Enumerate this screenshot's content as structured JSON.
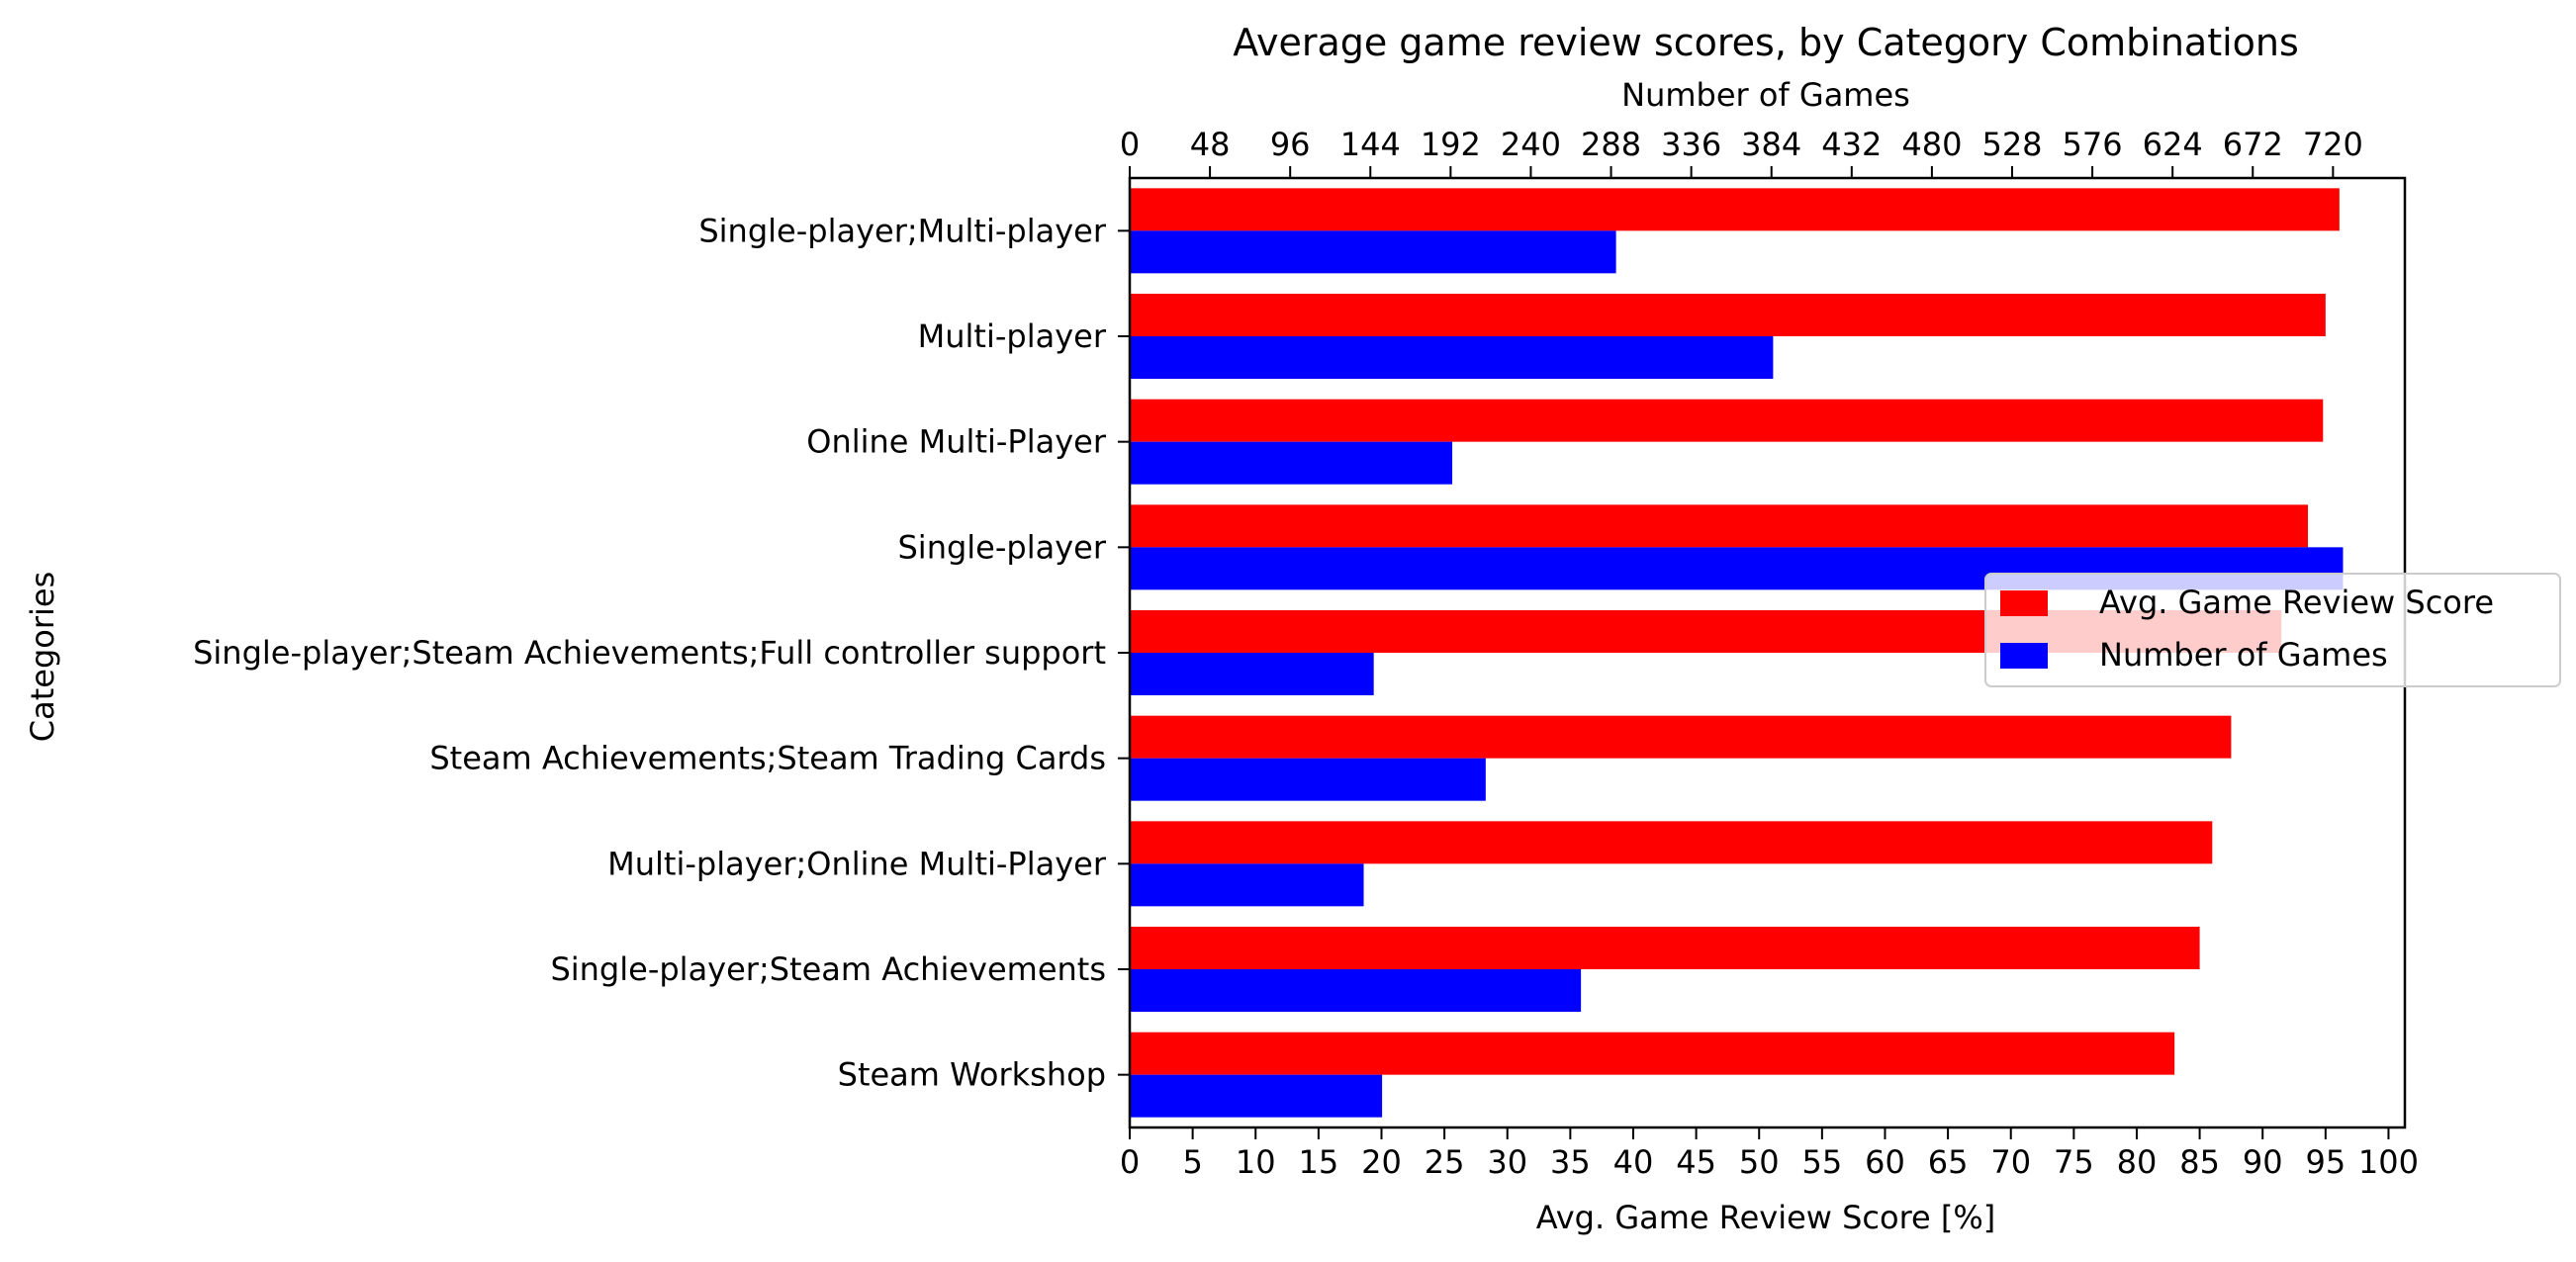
{
  "chart_data": {
    "type": "bar",
    "orientation": "horizontal",
    "title": "Average game review scores, by Category Combinations",
    "ylabel": "Categories",
    "xlabel_bottom": "Avg. Game Review Score [%]",
    "xlabel_top": "Number of Games",
    "categories": [
      "Single-player;Multi-player",
      "Multi-player",
      "Online Multi-Player",
      "Single-player",
      "Single-player;Steam Achievements;Full controller support",
      "Steam Achievements;Steam Trading Cards",
      "Multi-player;Online Multi-Player",
      "Single-player;Steam Achievements",
      "Steam Workshop"
    ],
    "series": [
      {
        "name": "Avg. Game Review Score",
        "axis": "bottom",
        "color": "#ff0000",
        "values": [
          96.1,
          95.0,
          94.8,
          93.6,
          91.5,
          87.5,
          86.0,
          85.0,
          83.0
        ]
      },
      {
        "name": "Number of Games",
        "axis": "top",
        "color": "#0000ff",
        "values": [
          291,
          385,
          193,
          726,
          146,
          213,
          140,
          270,
          151
        ]
      }
    ],
    "xlim_bottom": [
      0,
      101.3
    ],
    "xticks_bottom": [
      0,
      5,
      10,
      15,
      20,
      25,
      30,
      35,
      40,
      45,
      50,
      55,
      60,
      65,
      70,
      75,
      80,
      85,
      90,
      95,
      100
    ],
    "xlim_top": [
      0,
      763
    ],
    "xticks_top": [
      0,
      48,
      96,
      144,
      192,
      240,
      288,
      336,
      384,
      432,
      480,
      528,
      576,
      624,
      672,
      720
    ],
    "legend": {
      "placement": "center-right",
      "entries": [
        "Avg. Game Review Score",
        "Number of Games"
      ]
    },
    "grid": false
  }
}
